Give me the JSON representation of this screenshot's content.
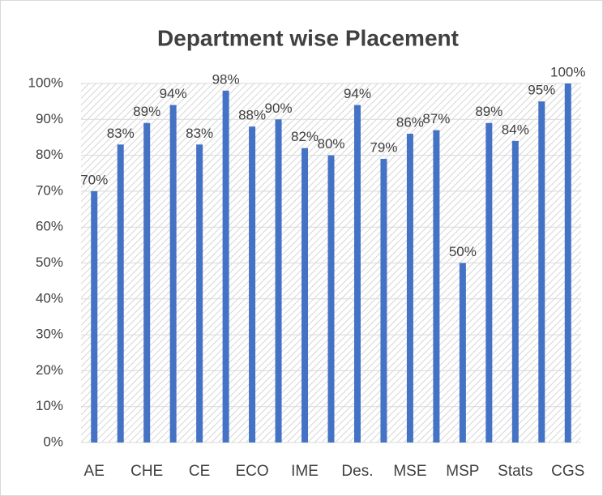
{
  "chart_data": {
    "type": "bar",
    "title": "Department wise Placement",
    "categories": [
      "AE",
      null,
      "CHE",
      null,
      "CE",
      null,
      "ECO",
      null,
      "IME",
      null,
      "Des.",
      null,
      "MSE",
      null,
      "MSP",
      null,
      "Stats",
      null,
      "CGS"
    ],
    "values": [
      70,
      83,
      89,
      94,
      83,
      98,
      88,
      90,
      82,
      80,
      94,
      79,
      86,
      87,
      50,
      89,
      84,
      95,
      100
    ],
    "value_labels": [
      "70%",
      "83%",
      "89%",
      "94%",
      "83%",
      "98%",
      "88%",
      "90%",
      "82%",
      "80%",
      "94%",
      "79%",
      "86%",
      "87%",
      "50%",
      "89%",
      "84%",
      "95%",
      "100%"
    ],
    "color": "#4472c4",
    "ylim": [
      0,
      100
    ],
    "yticks": [
      {
        "value": 0,
        "label": "0%"
      },
      {
        "value": 10,
        "label": "10%"
      },
      {
        "value": 20,
        "label": "20%"
      },
      {
        "value": 30,
        "label": "30%"
      },
      {
        "value": 40,
        "label": "40%"
      },
      {
        "value": 50,
        "label": "50%"
      },
      {
        "value": 60,
        "label": "60%"
      },
      {
        "value": 70,
        "label": "70%"
      },
      {
        "value": 80,
        "label": "80%"
      },
      {
        "value": 90,
        "label": "90%"
      },
      {
        "value": 100,
        "label": "100%"
      }
    ],
    "grid": true
  }
}
